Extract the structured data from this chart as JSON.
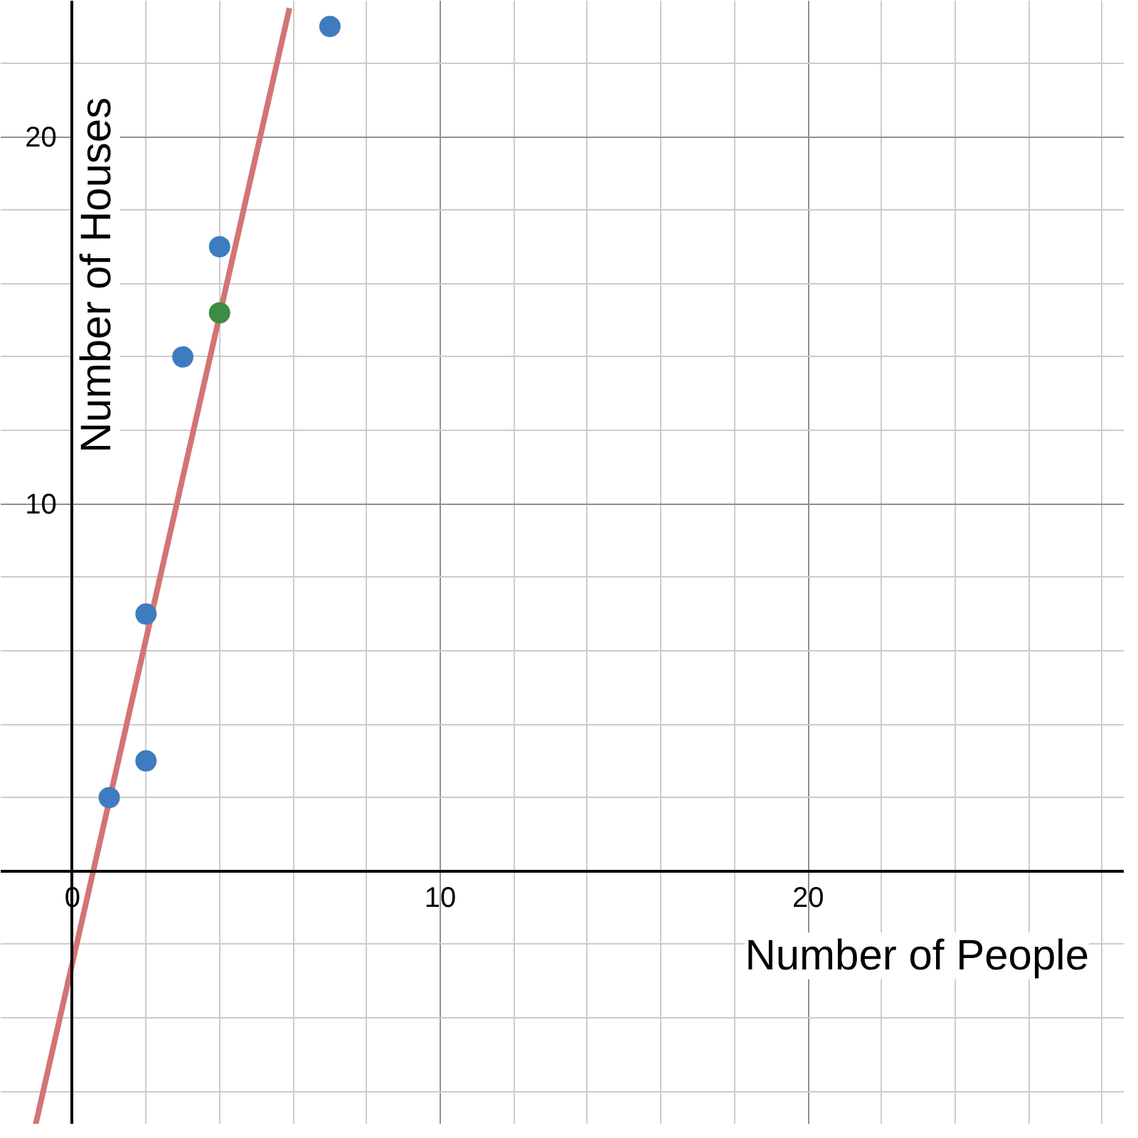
{
  "chart_data": {
    "type": "scatter",
    "xlabel": "Number of People",
    "ylabel": "Number of Houses",
    "xlim": [
      -1.95,
      28.6
    ],
    "ylim": [
      -6.9,
      23.7
    ],
    "xticks": [
      0,
      10,
      20
    ],
    "yticks": [
      10,
      20
    ],
    "grid": true,
    "series": [
      {
        "type": "line",
        "color": "#d47474",
        "x": [
          -1,
          5.9
        ],
        "values": [
          -6.9,
          23.5
        ],
        "line_style": "solid"
      },
      {
        "color": "#3f7cbf",
        "marker": "circle",
        "x": [
          1,
          2,
          2,
          3,
          4,
          7
        ],
        "values": [
          2,
          3,
          7,
          14,
          17,
          23
        ]
      },
      {
        "color": "#3b8c45",
        "marker": "circle",
        "x": [
          4
        ],
        "values": [
          15.2
        ]
      }
    ]
  }
}
